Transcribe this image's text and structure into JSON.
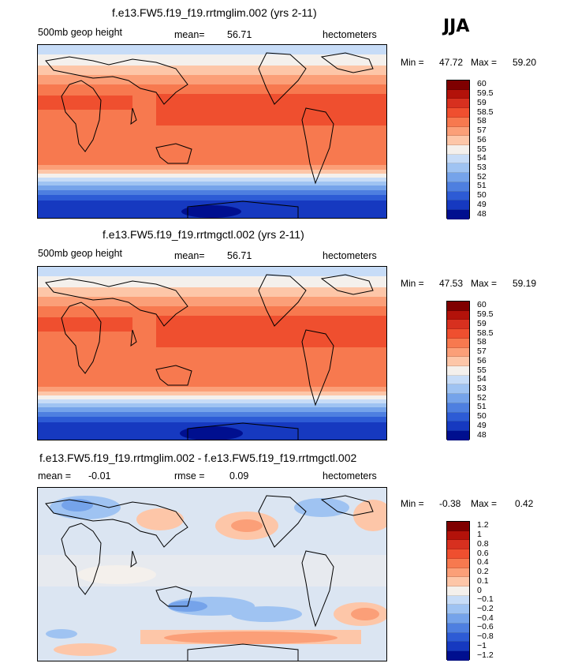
{
  "season": "JJA",
  "panels": [
    {
      "title": "f.e13.FW5.f19_f19.rrtmglim.002 (yrs 2-11)",
      "left_label": "500mb geop height",
      "mid_label": "mean=",
      "mid_value": "56.71",
      "units": "hectometers",
      "min_label": "Min =",
      "min_value": "47.72",
      "max_label": "Max =",
      "max_value": "59.20",
      "colorbar_labels": [
        "60",
        "59.5",
        "59",
        "58.5",
        "58",
        "57",
        "56",
        "55",
        "54",
        "53",
        "52",
        "51",
        "50",
        "49",
        "48"
      ]
    },
    {
      "title": "f.e13.FW5.f19_f19.rrtmgctl.002 (yrs 2-11)",
      "left_label": "500mb geop height",
      "mid_label": "mean=",
      "mid_value": "56.71",
      "units": "hectometers",
      "min_label": "Min =",
      "min_value": "47.53",
      "max_label": "Max =",
      "max_value": "59.19",
      "colorbar_labels": [
        "60",
        "59.5",
        "59",
        "58.5",
        "58",
        "57",
        "56",
        "55",
        "54",
        "53",
        "52",
        "51",
        "50",
        "49",
        "48"
      ]
    },
    {
      "title": "f.e13.FW5.f19_f19.rrtmglim.002 - f.e13.FW5.f19_f19.rrtmgctl.002",
      "left_label": "mean =",
      "left_value": "-0.01",
      "mid_label": "rmse =",
      "mid_value": "0.09",
      "units": "hectometers",
      "min_label": "Min =",
      "min_value": "-0.38",
      "max_label": "Max =",
      "max_value": "0.42",
      "colorbar_labels": [
        "1.2",
        "1",
        "0.8",
        "0.6",
        "0.4",
        "0.2",
        "0.1",
        "0",
        "-0.1",
        "-0.2",
        "-0.4",
        "-0.6",
        "-0.8",
        "-1",
        "-1.2"
      ]
    }
  ],
  "colorbar_colors": [
    "#7f0000",
    "#b3120a",
    "#d7301f",
    "#ef4f2f",
    "#f7794f",
    "#fb9f78",
    "#fdc6a8",
    "#f4f0ec",
    "#c7dcf7",
    "#9fc3f2",
    "#75a3ea",
    "#4e7fe0",
    "#2d5bd5",
    "#1639c0",
    "#000f8f"
  ]
}
